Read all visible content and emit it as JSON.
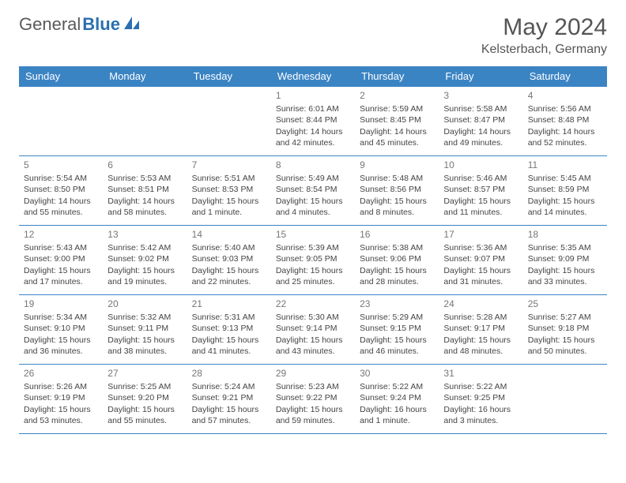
{
  "logo": {
    "part1": "General",
    "part2": "Blue"
  },
  "title": "May 2024",
  "location": "Kelsterbach, Germany",
  "headers": [
    "Sunday",
    "Monday",
    "Tuesday",
    "Wednesday",
    "Thursday",
    "Friday",
    "Saturday"
  ],
  "colors": {
    "header_bg": "#3b84c4",
    "header_text": "#ffffff",
    "border": "#3b84c4",
    "logo_gray": "#5a5a5a",
    "logo_blue": "#2b6fb0"
  },
  "weeks": [
    [
      null,
      null,
      null,
      {
        "n": "1",
        "sr": "6:01 AM",
        "ss": "8:44 PM",
        "dl": "14 hours and 42 minutes."
      },
      {
        "n": "2",
        "sr": "5:59 AM",
        "ss": "8:45 PM",
        "dl": "14 hours and 45 minutes."
      },
      {
        "n": "3",
        "sr": "5:58 AM",
        "ss": "8:47 PM",
        "dl": "14 hours and 49 minutes."
      },
      {
        "n": "4",
        "sr": "5:56 AM",
        "ss": "8:48 PM",
        "dl": "14 hours and 52 minutes."
      }
    ],
    [
      {
        "n": "5",
        "sr": "5:54 AM",
        "ss": "8:50 PM",
        "dl": "14 hours and 55 minutes."
      },
      {
        "n": "6",
        "sr": "5:53 AM",
        "ss": "8:51 PM",
        "dl": "14 hours and 58 minutes."
      },
      {
        "n": "7",
        "sr": "5:51 AM",
        "ss": "8:53 PM",
        "dl": "15 hours and 1 minute."
      },
      {
        "n": "8",
        "sr": "5:49 AM",
        "ss": "8:54 PM",
        "dl": "15 hours and 4 minutes."
      },
      {
        "n": "9",
        "sr": "5:48 AM",
        "ss": "8:56 PM",
        "dl": "15 hours and 8 minutes."
      },
      {
        "n": "10",
        "sr": "5:46 AM",
        "ss": "8:57 PM",
        "dl": "15 hours and 11 minutes."
      },
      {
        "n": "11",
        "sr": "5:45 AM",
        "ss": "8:59 PM",
        "dl": "15 hours and 14 minutes."
      }
    ],
    [
      {
        "n": "12",
        "sr": "5:43 AM",
        "ss": "9:00 PM",
        "dl": "15 hours and 17 minutes."
      },
      {
        "n": "13",
        "sr": "5:42 AM",
        "ss": "9:02 PM",
        "dl": "15 hours and 19 minutes."
      },
      {
        "n": "14",
        "sr": "5:40 AM",
        "ss": "9:03 PM",
        "dl": "15 hours and 22 minutes."
      },
      {
        "n": "15",
        "sr": "5:39 AM",
        "ss": "9:05 PM",
        "dl": "15 hours and 25 minutes."
      },
      {
        "n": "16",
        "sr": "5:38 AM",
        "ss": "9:06 PM",
        "dl": "15 hours and 28 minutes."
      },
      {
        "n": "17",
        "sr": "5:36 AM",
        "ss": "9:07 PM",
        "dl": "15 hours and 31 minutes."
      },
      {
        "n": "18",
        "sr": "5:35 AM",
        "ss": "9:09 PM",
        "dl": "15 hours and 33 minutes."
      }
    ],
    [
      {
        "n": "19",
        "sr": "5:34 AM",
        "ss": "9:10 PM",
        "dl": "15 hours and 36 minutes."
      },
      {
        "n": "20",
        "sr": "5:32 AM",
        "ss": "9:11 PM",
        "dl": "15 hours and 38 minutes."
      },
      {
        "n": "21",
        "sr": "5:31 AM",
        "ss": "9:13 PM",
        "dl": "15 hours and 41 minutes."
      },
      {
        "n": "22",
        "sr": "5:30 AM",
        "ss": "9:14 PM",
        "dl": "15 hours and 43 minutes."
      },
      {
        "n": "23",
        "sr": "5:29 AM",
        "ss": "9:15 PM",
        "dl": "15 hours and 46 minutes."
      },
      {
        "n": "24",
        "sr": "5:28 AM",
        "ss": "9:17 PM",
        "dl": "15 hours and 48 minutes."
      },
      {
        "n": "25",
        "sr": "5:27 AM",
        "ss": "9:18 PM",
        "dl": "15 hours and 50 minutes."
      }
    ],
    [
      {
        "n": "26",
        "sr": "5:26 AM",
        "ss": "9:19 PM",
        "dl": "15 hours and 53 minutes."
      },
      {
        "n": "27",
        "sr": "5:25 AM",
        "ss": "9:20 PM",
        "dl": "15 hours and 55 minutes."
      },
      {
        "n": "28",
        "sr": "5:24 AM",
        "ss": "9:21 PM",
        "dl": "15 hours and 57 minutes."
      },
      {
        "n": "29",
        "sr": "5:23 AM",
        "ss": "9:22 PM",
        "dl": "15 hours and 59 minutes."
      },
      {
        "n": "30",
        "sr": "5:22 AM",
        "ss": "9:24 PM",
        "dl": "16 hours and 1 minute."
      },
      {
        "n": "31",
        "sr": "5:22 AM",
        "ss": "9:25 PM",
        "dl": "16 hours and 3 minutes."
      },
      null
    ]
  ],
  "labels": {
    "sunrise": "Sunrise:",
    "sunset": "Sunset:",
    "daylight": "Daylight:"
  }
}
